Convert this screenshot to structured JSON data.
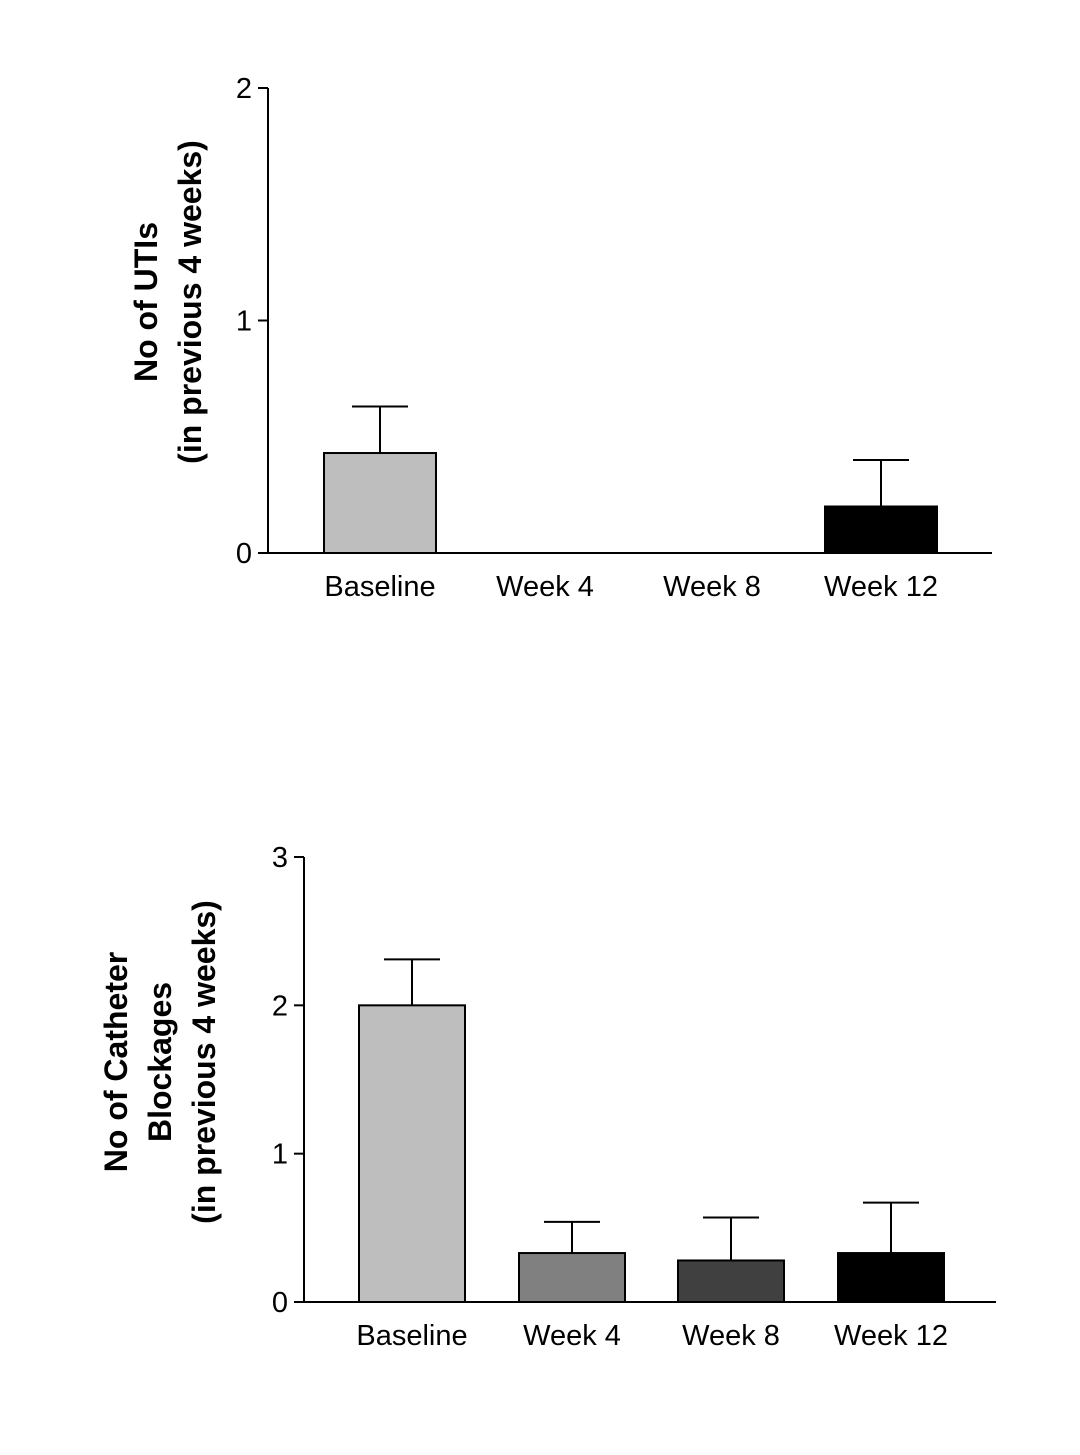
{
  "chart_data": [
    {
      "type": "bar",
      "title": "",
      "xlabel": "",
      "ylabel_lines": [
        "No of UTIs",
        "(in previous 4 weeks)"
      ],
      "categories": [
        "Baseline",
        "Week 4",
        "Week 8",
        "Week 12"
      ],
      "values": [
        0.43,
        0,
        0,
        0.2
      ],
      "errors": [
        0.2,
        0,
        0,
        0.2
      ],
      "bar_colors": [
        "#bebebe",
        "#808080",
        "#404040",
        "#000000"
      ],
      "ylim": [
        0,
        2
      ],
      "yticks": [
        0,
        1,
        2
      ],
      "ytick_labels": [
        "0",
        "1",
        "2"
      ],
      "grid": false,
      "legend": "none"
    },
    {
      "type": "bar",
      "title": "",
      "xlabel": "",
      "ylabel_lines": [
        "No of Catheter",
        "Blockages",
        "(in previous 4 weeks)"
      ],
      "categories": [
        "Baseline",
        "Week 4",
        "Week 8",
        "Week 12"
      ],
      "values": [
        2.0,
        0.33,
        0.28,
        0.33
      ],
      "errors": [
        0.31,
        0.21,
        0.29,
        0.34
      ],
      "bar_colors": [
        "#bebebe",
        "#808080",
        "#404040",
        "#000000"
      ],
      "ylim": [
        0,
        3
      ],
      "yticks": [
        0,
        1,
        2,
        3
      ],
      "ytick_labels": [
        "0",
        "1",
        "2",
        "3"
      ],
      "grid": false,
      "legend": "none"
    }
  ]
}
